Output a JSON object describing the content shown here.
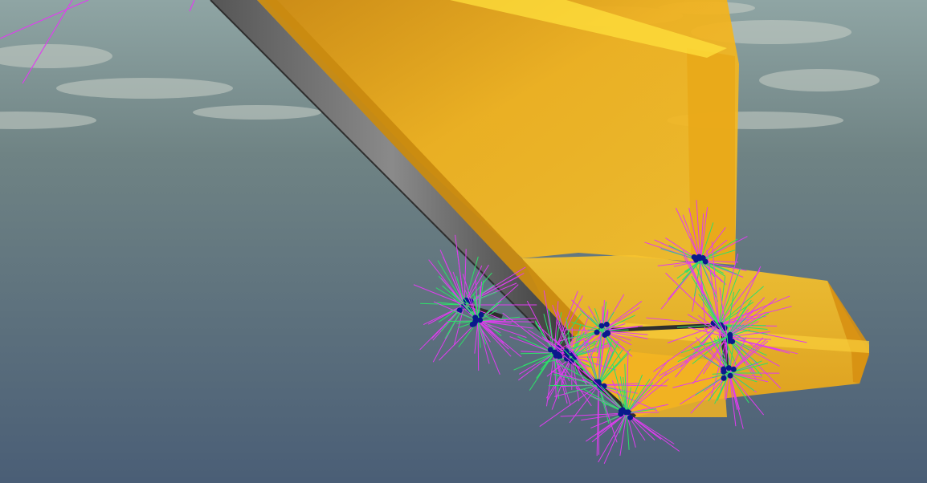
{
  "viewport": {
    "sky_top_color": "#8fa5a4",
    "sky_horizon_color": "#6f8384",
    "sky_bottom_color": "#4a5e76",
    "cloud_color": "#c9d0c8"
  },
  "model": {
    "body_color": "#f2b21c",
    "body_highlight_color": "#ffd640",
    "body_shadow_color": "#d08a0c",
    "edge_color": "#2e2e2e"
  },
  "debug_overlay": {
    "contact_point_color": "#0a1a8c",
    "normal_line_color": "#2ee06a",
    "force_line_color": "#e03cf0"
  }
}
